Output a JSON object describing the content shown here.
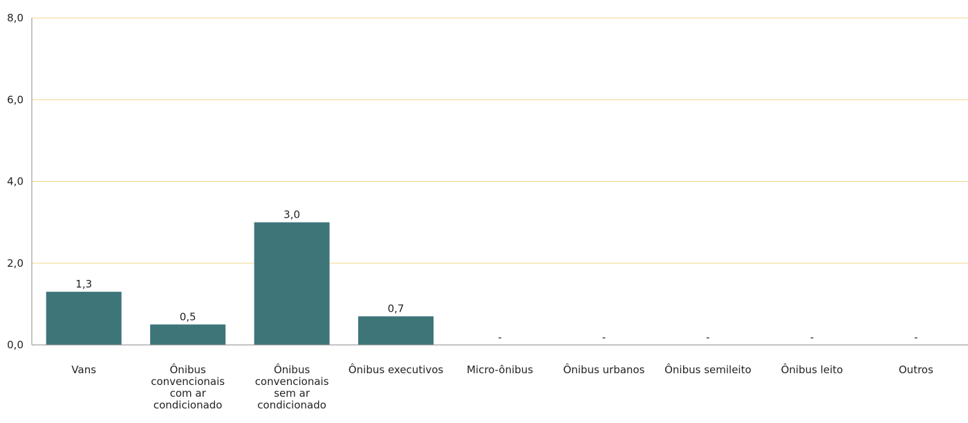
{
  "chart_data": {
    "type": "bar",
    "title": "",
    "xlabel": "",
    "ylabel": "",
    "ylim": [
      0,
      8
    ],
    "yticks": [
      "0,0",
      "2,0",
      "4,0",
      "6,0",
      "8,0"
    ],
    "grid": true,
    "legend": "none",
    "categories": [
      "Vans",
      "Ônibus convencionais com ar condicionado",
      "Ônibus convencionais sem ar condicionado",
      "Ônibus executivos",
      "Micro-ônibus",
      "Ônibus urbanos",
      "Ônibus semileito",
      "Ônibus leito",
      "Outros"
    ],
    "category_lines": [
      [
        "Vans"
      ],
      [
        "Ônibus",
        "convencionais",
        "com ar",
        "condicionado"
      ],
      [
        "Ônibus",
        "convencionais",
        "sem ar",
        "condicionado"
      ],
      [
        "Ônibus executivos"
      ],
      [
        "Micro-ônibus"
      ],
      [
        "Ônibus urbanos"
      ],
      [
        "Ônibus semileito"
      ],
      [
        "Ônibus leito"
      ],
      [
        "Outros"
      ]
    ],
    "values": [
      1.3,
      0.5,
      3.0,
      0.7,
      0,
      0,
      0,
      0,
      0
    ],
    "data_labels": [
      "1,3",
      "0,5",
      "3,0",
      "0,7",
      "-",
      "-",
      "-",
      "-",
      "-"
    ],
    "colors": {
      "bar": "#3d7579",
      "grid": "#f2d58a",
      "axis": "#8a8a8a",
      "text": "#231f20"
    }
  }
}
